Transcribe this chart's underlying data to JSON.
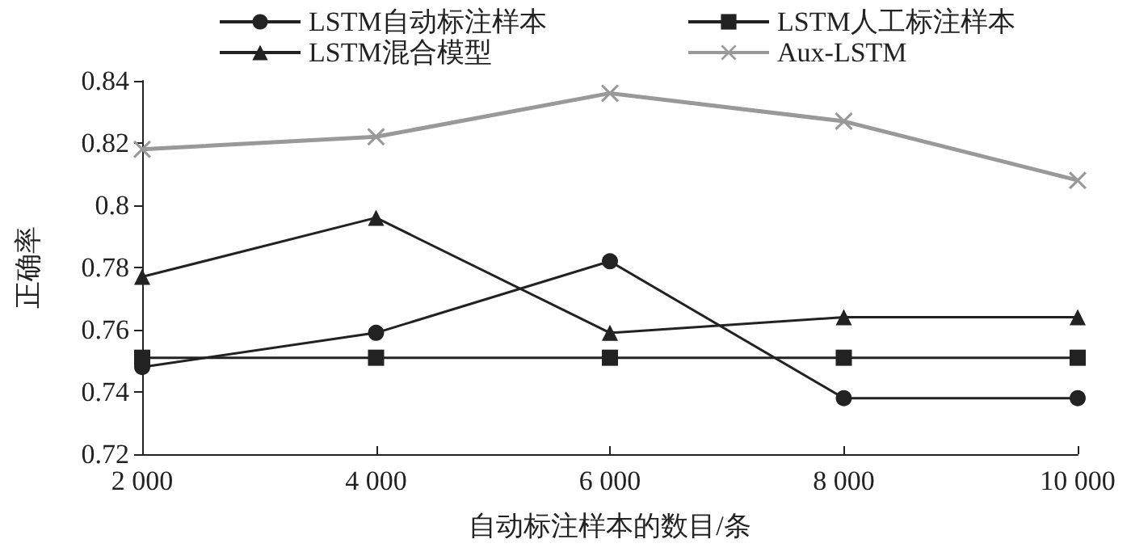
{
  "chart_data": {
    "type": "line",
    "xlabel": "自动标注样本的数目/条",
    "ylabel": "正确率",
    "x": [
      2000,
      4000,
      6000,
      8000,
      10000
    ],
    "series": [
      {
        "name": "LSTM自动标注样本",
        "color": "#222222",
        "marker": "circle",
        "values": [
          0.748,
          0.759,
          0.782,
          0.738,
          0.738
        ]
      },
      {
        "name": "LSTM人工标注样本",
        "color": "#222222",
        "marker": "square",
        "values": [
          0.751,
          0.751,
          0.751,
          0.751,
          0.751
        ]
      },
      {
        "name": "LSTM混合模型",
        "color": "#222222",
        "marker": "triangle",
        "values": [
          0.777,
          0.796,
          0.759,
          0.764,
          0.764
        ]
      },
      {
        "name": "Aux-LSTM",
        "color": "#999999",
        "marker": "cross",
        "values": [
          0.818,
          0.822,
          0.836,
          0.827,
          0.808
        ]
      }
    ],
    "xlim": [
      2000,
      10000
    ],
    "xticks": [
      {
        "value": 2000,
        "label": "2 000"
      },
      {
        "value": 4000,
        "label": "4 000"
      },
      {
        "value": 6000,
        "label": "6 000"
      },
      {
        "value": 8000,
        "label": "8 000"
      },
      {
        "value": 10000,
        "label": "10 000"
      }
    ],
    "ylim": [
      0.72,
      0.84
    ],
    "yticks": [
      0.72,
      0.74,
      0.76,
      0.78,
      0.8,
      0.82,
      0.84
    ],
    "grid": false,
    "legend": "top",
    "line_style": "solid"
  }
}
